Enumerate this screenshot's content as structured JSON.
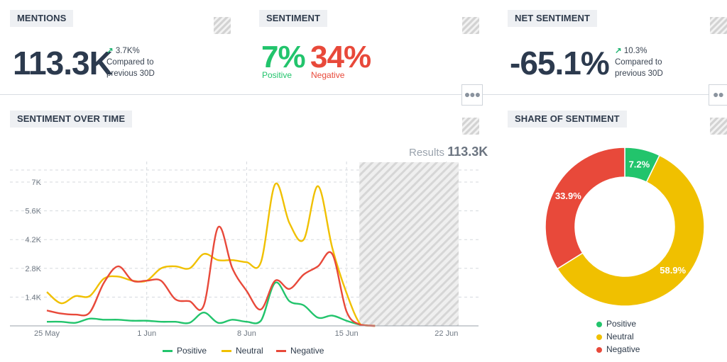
{
  "mentions": {
    "title": "MENTIONS",
    "value": "113.3K",
    "delta": "3.7K%",
    "compare_line1": "Compared to",
    "compare_line2": "previous 30D"
  },
  "sentiment": {
    "title": "SENTIMENT",
    "positive_value": "7%",
    "positive_label": "Positive",
    "negative_value": "34%",
    "negative_label": "Negative"
  },
  "net_sentiment": {
    "title": "NET SENTIMENT",
    "value": "-65.1%",
    "delta": "10.3%",
    "compare_line1": "Compared to",
    "compare_line2": "previous 30D"
  },
  "more_icon": "more-horizontal-icon",
  "colors": {
    "positive": "#22c46c",
    "neutral": "#f0c000",
    "negative": "#e8493a",
    "accent_up": "#22b573"
  },
  "sentiment_over_time": {
    "title": "SENTIMENT OVER TIME",
    "results_label": "Results",
    "results_value": "113.3K",
    "legend": [
      "Positive",
      "Neutral",
      "Negative"
    ]
  },
  "share_of_sentiment": {
    "title": "SHARE OF SENTIMENT",
    "legend": [
      "Positive",
      "Neutral",
      "Negative"
    ]
  },
  "chart_data": [
    {
      "type": "line",
      "title": "SENTIMENT OVER TIME",
      "x_ticks": [
        "25 May",
        "1 Jun",
        "8 Jun",
        "15 Jun",
        "22 Jun"
      ],
      "y_ticks": [
        "1.4K",
        "2.8K",
        "4.2K",
        "5.6K",
        "7K"
      ],
      "ylim": [
        0,
        7500
      ],
      "grid": true,
      "legend_position": "bottom",
      "x_days": [
        0,
        1,
        2,
        3,
        4,
        5,
        6,
        7,
        8,
        9,
        10,
        11,
        12,
        13,
        14,
        15,
        16,
        17,
        18,
        19,
        20,
        21,
        22,
        23
      ],
      "x_labels_dates": [
        "25 May",
        "26 May",
        "27 May",
        "28 May",
        "29 May",
        "30 May",
        "31 May",
        "1 Jun",
        "2 Jun",
        "3 Jun",
        "4 Jun",
        "5 Jun",
        "6 Jun",
        "7 Jun",
        "8 Jun",
        "9 Jun",
        "10 Jun",
        "11 Jun",
        "12 Jun",
        "13 Jun",
        "14 Jun",
        "15 Jun",
        "16 Jun",
        "17 Jun"
      ],
      "series": [
        {
          "name": "Positive",
          "color": "#22c46c",
          "values": [
            200,
            200,
            150,
            350,
            300,
            300,
            250,
            250,
            200,
            200,
            150,
            650,
            150,
            300,
            200,
            250,
            2100,
            1200,
            1000,
            400,
            500,
            250,
            50,
            0
          ]
        },
        {
          "name": "Neutral",
          "color": "#f0c000",
          "values": [
            1650,
            1100,
            1450,
            1450,
            2300,
            2400,
            2200,
            2200,
            2800,
            2900,
            2800,
            3500,
            3200,
            3200,
            3100,
            3100,
            6900,
            5000,
            4200,
            6800,
            3800,
            1600,
            50,
            0
          ]
        },
        {
          "name": "Negative",
          "color": "#e8493a",
          "values": [
            750,
            600,
            550,
            650,
            2100,
            2900,
            2200,
            2200,
            2200,
            1300,
            1200,
            1000,
            4800,
            2800,
            1700,
            800,
            2200,
            1800,
            2500,
            2900,
            3500,
            700,
            50,
            0
          ]
        }
      ],
      "forecast_region_start": "16 Jun"
    },
    {
      "type": "pie",
      "title": "SHARE OF SENTIMENT",
      "labels": [
        "Positive",
        "Neutral",
        "Negative"
      ],
      "values": [
        7.2,
        58.9,
        33.9
      ],
      "value_labels": [
        "7.2%",
        "58.9%",
        "33.9%"
      ],
      "colors": [
        "#22c46c",
        "#f0c000",
        "#e8493a"
      ],
      "donut": true,
      "legend_position": "bottom"
    }
  ]
}
